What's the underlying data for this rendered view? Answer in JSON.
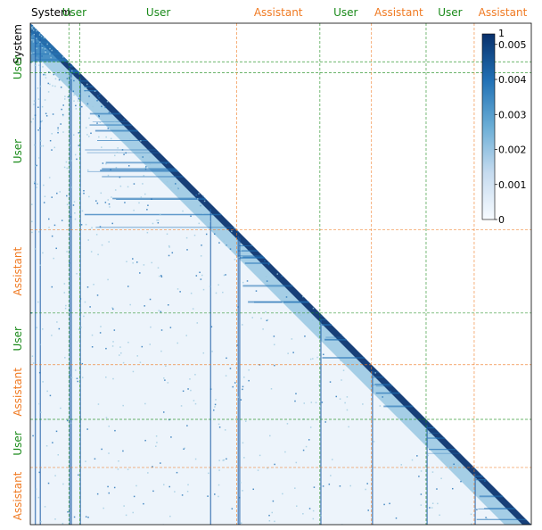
{
  "chart_data": {
    "type": "heatmap",
    "subtype": "lower-triangular attention map",
    "colormap": "Blues",
    "segments": [
      {
        "role": "System",
        "label": "System",
        "start": 0.0,
        "end": 0.077,
        "color": "#000000"
      },
      {
        "role": "User",
        "label": "User",
        "start": 0.077,
        "end": 0.099,
        "color": "#1a8a1a"
      },
      {
        "role": "User",
        "label": "User",
        "start": 0.099,
        "end": 0.412,
        "color": "#1a8a1a"
      },
      {
        "role": "Assistant",
        "label": "Assistant",
        "start": 0.412,
        "end": 0.578,
        "color": "#f07a22"
      },
      {
        "role": "User",
        "label": "User",
        "start": 0.578,
        "end": 0.681,
        "color": "#1a8a1a"
      },
      {
        "role": "Assistant",
        "label": "Assistant",
        "start": 0.681,
        "end": 0.79,
        "color": "#f07a22"
      },
      {
        "role": "User",
        "label": "User",
        "start": 0.79,
        "end": 0.886,
        "color": "#1a8a1a"
      },
      {
        "role": "Assistant",
        "label": "Assistant",
        "start": 0.886,
        "end": 1.0,
        "color": "#f07a22"
      }
    ],
    "colorbar": {
      "vmin": 0,
      "vmax": 0.0053,
      "ticks": [
        0,
        0.001,
        0.002,
        0.003,
        0.004,
        0.005
      ],
      "tick_labels": [
        "0",
        "0.001",
        "0.002",
        "0.003",
        "0.004",
        "0.005"
      ],
      "top_label": "1",
      "top_value": 1
    }
  }
}
